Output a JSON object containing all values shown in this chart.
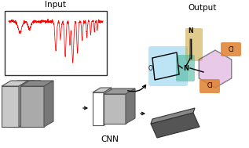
{
  "input_label": "Input",
  "output_label": "Output",
  "cnn_label": "CNN",
  "spectrum_color": "#ff0000",
  "background": "#ffffff",
  "arrow_color": "#000000",
  "highlight_blue": "#87ceeb",
  "highlight_teal": "#4db89e",
  "highlight_yellow_green": "#b8a040",
  "highlight_orange": "#e08030",
  "highlight_purple": "#cc88cc",
  "label_fontsize": 7.5,
  "cnn_fontsize": 7.5,
  "box_lc": "#555555",
  "box_fc_white": "#f8f8f8",
  "box_fc_lgray": "#cccccc",
  "box_fc_dgray": "#999999",
  "box_fc_mgray": "#bbbbbb",
  "parallelogram_dark": "#555555",
  "parallelogram_light": "#888888"
}
